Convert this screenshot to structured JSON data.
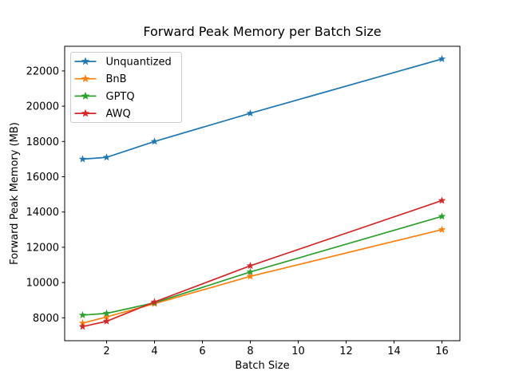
{
  "chart_data": {
    "type": "line",
    "title": "Forward Peak Memory per Batch Size",
    "xlabel": "Batch Size",
    "ylabel": "Forward Peak Memory (MB)",
    "x": [
      1,
      2,
      4,
      8,
      16
    ],
    "series": [
      {
        "name": "Unquantized",
        "color": "#1f77b4",
        "marker": "star",
        "values": [
          17000,
          17100,
          18000,
          19600,
          22680
        ]
      },
      {
        "name": "BnB",
        "color": "#ff7f0e",
        "marker": "star",
        "values": [
          7700,
          8050,
          8800,
          10350,
          13000
        ]
      },
      {
        "name": "GPTQ",
        "color": "#2ca02c",
        "marker": "star",
        "values": [
          8150,
          8250,
          8850,
          10600,
          13750
        ]
      },
      {
        "name": "AWQ",
        "color": "#d62728",
        "marker": "star",
        "values": [
          7500,
          7800,
          8900,
          10950,
          14650
        ]
      }
    ],
    "xticks": [
      2,
      4,
      6,
      8,
      10,
      12,
      14,
      16
    ],
    "yticks": [
      8000,
      10000,
      12000,
      14000,
      16000,
      18000,
      20000,
      22000
    ],
    "xlim": [
      0.25,
      16.75
    ],
    "ylim": [
      6700,
      23400
    ],
    "grid": false,
    "legend": {
      "position": "upper-left",
      "entries": [
        "Unquantized",
        "BnB",
        "GPTQ",
        "AWQ"
      ]
    },
    "axis_color": "#000000",
    "legend_border_color": "#cccccc"
  }
}
